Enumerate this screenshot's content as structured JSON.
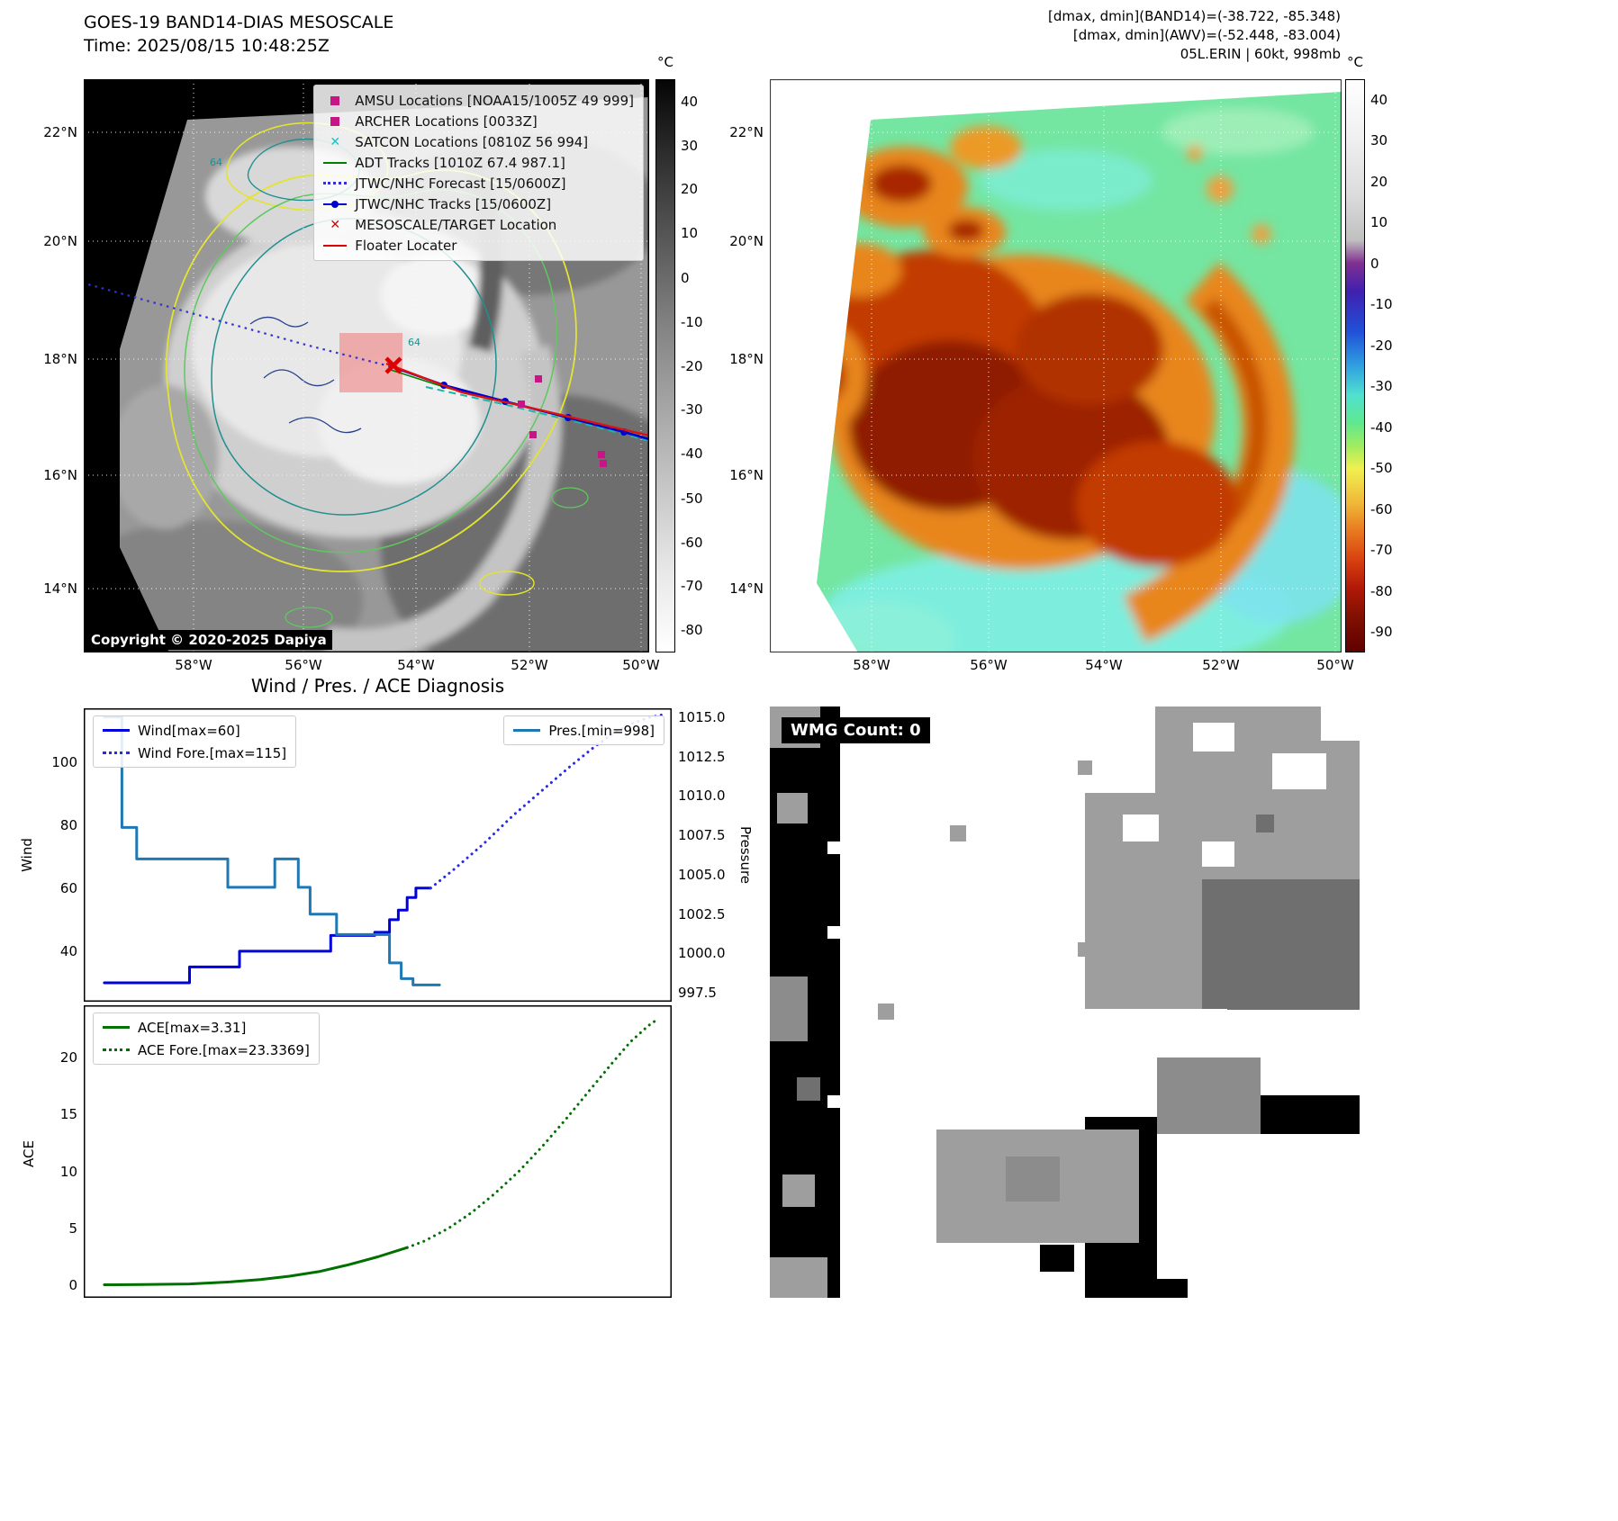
{
  "panel1": {
    "title": "GOES-19 BAND14-DIAS MESOSCALE",
    "subtitle": "Time: 2025/08/15 10:48:25Z",
    "copyright": "Copyright © 2020-2025 Dapiya",
    "colorbar_label": "°C",
    "colorbar_ticks": [
      "40",
      "30",
      "20",
      "10",
      "0",
      "-10",
      "-20",
      "-30",
      "-40",
      "-50",
      "-60",
      "-70",
      "-80"
    ],
    "x_ticks": [
      "58°W",
      "56°W",
      "54°W",
      "52°W",
      "50°W"
    ],
    "y_ticks": [
      "22°N",
      "20°N",
      "18°N",
      "16°N",
      "14°N"
    ],
    "contour_labels": [
      "64",
      "64"
    ],
    "legend": [
      {
        "label": "AMSU Locations [NOAA15/1005Z 49 999]",
        "marker": "square",
        "color": "#c71585"
      },
      {
        "label": "ARCHER Locations [0033Z]",
        "marker": "square",
        "color": "#c71585"
      },
      {
        "label": "SATCON Locations [0810Z 56 994]",
        "marker": "x",
        "color": "#00cccc"
      },
      {
        "label": "ADT Tracks [1010Z 67.4 987.1]",
        "marker": "line",
        "color": "#008000"
      },
      {
        "label": "JTWC/NHC Forecast [15/0600Z]",
        "marker": "dotted-line",
        "color": "#3333cc"
      },
      {
        "label": "JTWC/NHC Tracks [15/0600Z]",
        "marker": "line-dot",
        "color": "#0000cd"
      },
      {
        "label": "MESOSCALE/TARGET Location",
        "marker": "x-bold",
        "color": "#dd0000"
      },
      {
        "label": "Floater Locater",
        "marker": "line",
        "color": "#dd0000"
      }
    ]
  },
  "panel2": {
    "header_line1": "[dmax, dmin](BAND14)=(-38.722, -85.348)",
    "header_line2": "[dmax, dmin](AWV)=(-52.448, -83.004)",
    "header_line3": "05L.ERIN | 60kt, 998mb",
    "colorbar_label": "°C",
    "colorbar_ticks": [
      "40",
      "30",
      "20",
      "10",
      "0",
      "-10",
      "-20",
      "-30",
      "-40",
      "-50",
      "-60",
      "-70",
      "-80",
      "-90"
    ],
    "x_ticks": [
      "58°W",
      "56°W",
      "54°W",
      "52°W",
      "50°W"
    ],
    "y_ticks": [
      "22°N",
      "20°N",
      "18°N",
      "16°N",
      "14°N"
    ]
  },
  "panel3": {
    "title": "Wind / Pres. / ACE Diagnosis",
    "wind_axis_label": "Wind",
    "pressure_axis_label": "Pressure",
    "ace_axis_label": "ACE",
    "wind_ticks": [
      "100",
      "80",
      "60",
      "40"
    ],
    "pressure_ticks": [
      "1015.0",
      "1012.5",
      "1010.0",
      "1007.5",
      "1005.0",
      "1002.5",
      "1000.0",
      "997.5"
    ],
    "ace_ticks": [
      "20",
      "15",
      "10",
      "5",
      "0"
    ]
  },
  "panel4": {
    "title": "WMG Count: 0"
  },
  "chart_data": [
    {
      "type": "line",
      "title": "Wind / Pres. / ACE Diagnosis",
      "xlabel": "",
      "ylabel_left": "Wind",
      "ylabel_right": "Pressure",
      "xlim": [
        0,
        100
      ],
      "ylim_wind": [
        24,
        117
      ],
      "ylim_pressure": [
        996.94,
        1015.56
      ],
      "grid": false,
      "legend_position": "upper-left and upper-right",
      "series": [
        {
          "name": "Wind[max=60]",
          "axis": "wind",
          "color": "#0000dd",
          "style": "solid",
          "points": [
            [
              3.5,
              30
            ],
            [
              18,
              30
            ],
            [
              18,
              35
            ],
            [
              26.5,
              35
            ],
            [
              26.5,
              40
            ],
            [
              42,
              40
            ],
            [
              42,
              45
            ],
            [
              49.5,
              45
            ],
            [
              49.5,
              46
            ],
            [
              52,
              46
            ],
            [
              52,
              50
            ],
            [
              53.5,
              50
            ],
            [
              53.5,
              53
            ],
            [
              55,
              53
            ],
            [
              55,
              57
            ],
            [
              56.5,
              57
            ],
            [
              56.5,
              60
            ],
            [
              59,
              60
            ]
          ]
        },
        {
          "name": "Wind Fore.[max=115]",
          "axis": "wind",
          "color": "#2a2ae6",
          "style": "dotted",
          "points": [
            [
              59,
              60
            ],
            [
              63,
              66
            ],
            [
              68,
              74
            ],
            [
              73,
              83
            ],
            [
              78,
              91
            ],
            [
              83,
              99
            ],
            [
              87,
              105
            ],
            [
              90,
              109
            ],
            [
              93,
              112
            ],
            [
              96,
              114
            ],
            [
              98.5,
              115
            ]
          ]
        },
        {
          "name": "Pres.[min=998]",
          "axis": "pressure",
          "color": "#1f77b4",
          "style": "solid",
          "points": [
            [
              3.5,
              1015
            ],
            [
              6.5,
              1015
            ],
            [
              6.5,
              1008
            ],
            [
              9,
              1008
            ],
            [
              9,
              1006
            ],
            [
              24.5,
              1006
            ],
            [
              24.5,
              1004.2
            ],
            [
              32.5,
              1004.2
            ],
            [
              32.5,
              1006
            ],
            [
              36.5,
              1006
            ],
            [
              36.5,
              1004.2
            ],
            [
              38.5,
              1004.2
            ],
            [
              38.5,
              1002.5
            ],
            [
              43,
              1002.5
            ],
            [
              43,
              1001.2
            ],
            [
              52,
              1001.2
            ],
            [
              52,
              999.4
            ],
            [
              54,
              999.4
            ],
            [
              54,
              998.4
            ],
            [
              56,
              998.4
            ],
            [
              56,
              998
            ],
            [
              60.5,
              998
            ]
          ]
        }
      ]
    },
    {
      "type": "line",
      "title": "",
      "ylabel_left": "ACE",
      "xlim": [
        0,
        100
      ],
      "ylim": [
        -1.1,
        24.6
      ],
      "grid": false,
      "legend_position": "upper-left",
      "series": [
        {
          "name": "ACE[max=3.31]",
          "color": "#007000",
          "style": "solid",
          "points": [
            [
              3.5,
              0.05
            ],
            [
              10,
              0.06
            ],
            [
              18,
              0.12
            ],
            [
              25,
              0.3
            ],
            [
              30,
              0.5
            ],
            [
              35,
              0.8
            ],
            [
              40,
              1.2
            ],
            [
              45,
              1.8
            ],
            [
              50,
              2.5
            ],
            [
              55,
              3.31
            ]
          ]
        },
        {
          "name": "ACE Fore.[max=23.3369]",
          "color": "#007000",
          "style": "dotted",
          "points": [
            [
              55,
              3.31
            ],
            [
              58,
              3.9
            ],
            [
              62,
              5.0
            ],
            [
              66,
              6.4
            ],
            [
              70,
              8.1
            ],
            [
              74,
              10.0
            ],
            [
              78,
              12.2
            ],
            [
              82,
              14.6
            ],
            [
              86,
              17.1
            ],
            [
              90,
              19.6
            ],
            [
              93,
              21.4
            ],
            [
              96,
              22.8
            ],
            [
              97.5,
              23.34
            ]
          ]
        }
      ]
    }
  ]
}
